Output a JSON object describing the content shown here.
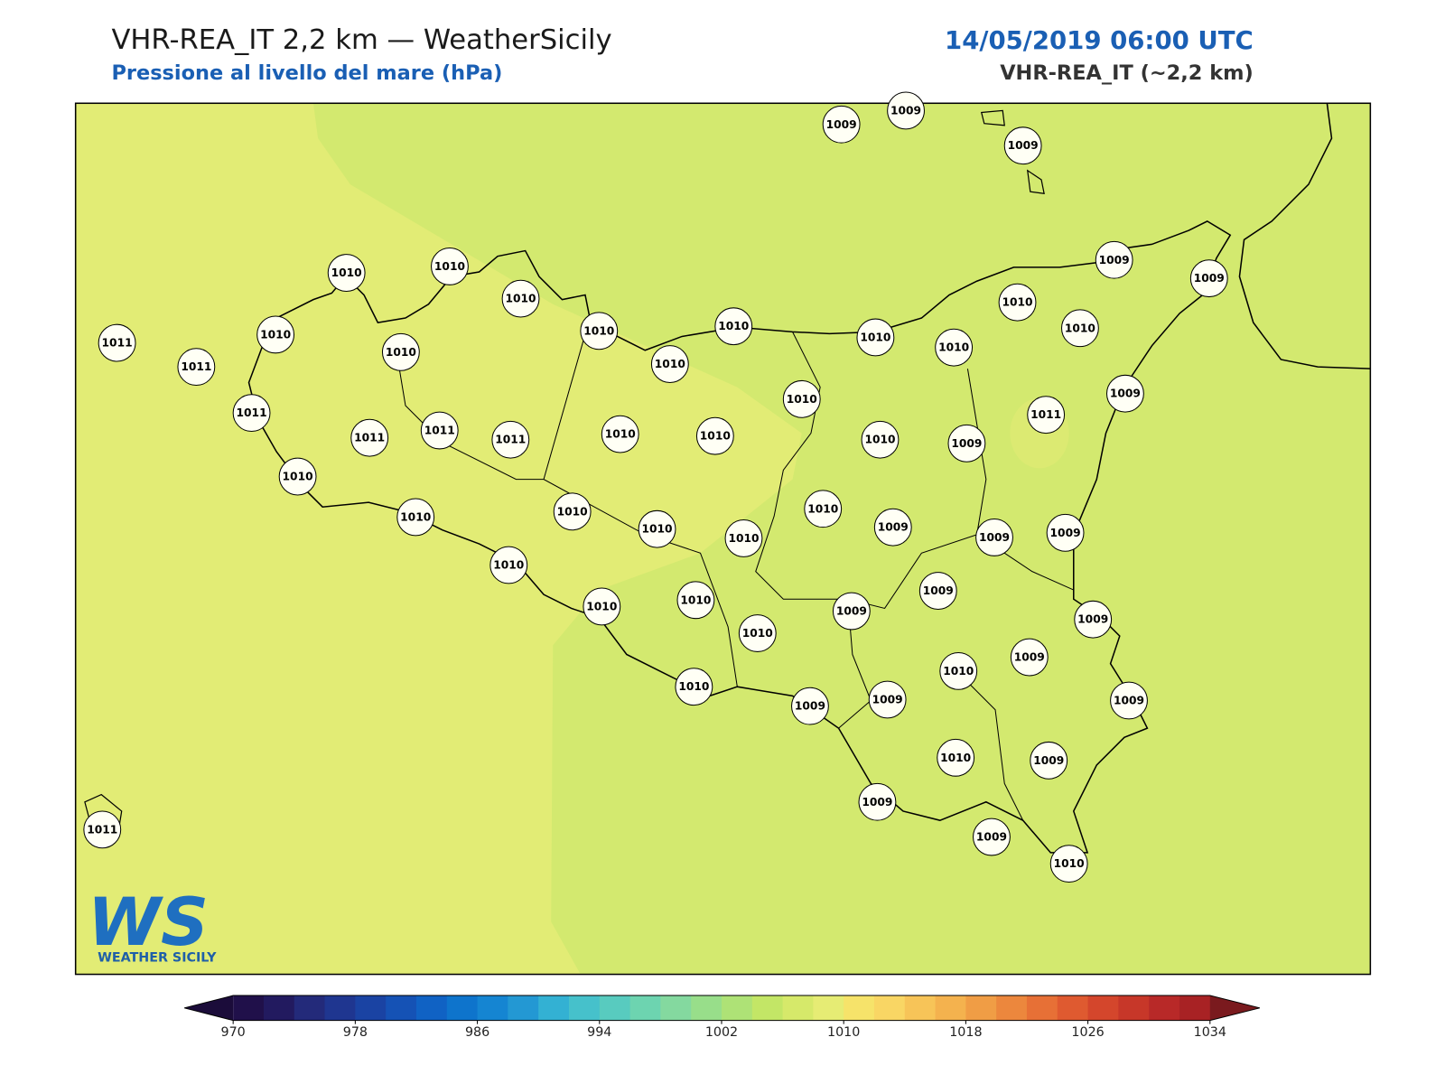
{
  "header": {
    "title": "VHR-REA_IT 2,2 km — WeatherSicily",
    "subtitle": "Pressione al livello del mare (hPa)",
    "datetime": "14/05/2019 06:00 UTC",
    "model": "VHR-REA_IT (~2,2 km)"
  },
  "stations": [
    1009,
    1009,
    1009,
    1009,
    1009,
    1010,
    1010,
    1010,
    1010,
    1010,
    1010,
    1010,
    1010,
    1010,
    1011,
    1011,
    1010,
    1010,
    1010,
    1010,
    1009,
    1011,
    1011,
    1011,
    1011,
    1011,
    1010,
    1010,
    1010,
    1009,
    1010,
    1010,
    1010,
    1010,
    1010,
    1010,
    1009,
    1009,
    1009,
    1010,
    1010,
    1010,
    1010,
    1009,
    1009,
    1009,
    1009,
    1010,
    1010,
    1009,
    1009,
    1009,
    1010,
    1009,
    1009,
    1009,
    1010,
    1011
  ],
  "colorbar": {
    "lim": [
      970,
      1034
    ],
    "ticks": [
      970,
      978,
      986,
      994,
      1002,
      1010,
      1018,
      1026,
      1034
    ],
    "colors": [
      "#20104a",
      "#221a5f",
      "#232a7a",
      "#1f3690",
      "#1a43a3",
      "#1552b5",
      "#1062c4",
      "#0e74cc",
      "#1585d2",
      "#2398d3",
      "#33b1d3",
      "#46c1cb",
      "#58cbbf",
      "#6dd4b0",
      "#84d99f",
      "#98de8a",
      "#aee276",
      "#c3e666",
      "#d6e96a",
      "#e6ec74",
      "#f6e36a",
      "#f9d664",
      "#f7c458",
      "#f4b24e",
      "#f09d45",
      "#ec873d",
      "#e77036",
      "#df5a30",
      "#d4462c",
      "#c73729",
      "#b82928",
      "#a82224"
    ],
    "under": "#1b0c3a",
    "over": "#7a1a1e"
  },
  "logo": {
    "mark": "WS",
    "text": "WEATHER SICILY"
  }
}
